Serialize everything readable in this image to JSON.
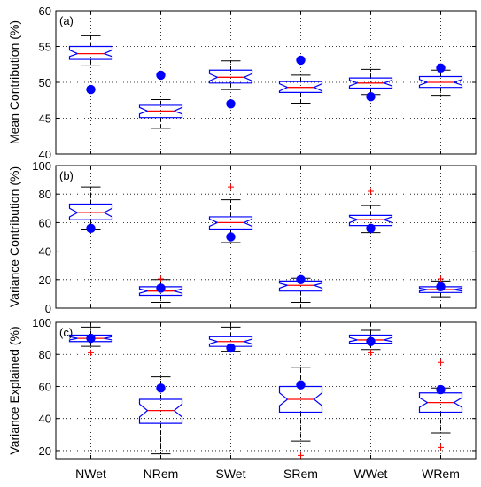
{
  "chart_data": [
    {
      "type": "box",
      "panel_label": "(a)",
      "ylabel": "Mean Contribution (%)",
      "ylim": [
        40,
        60
      ],
      "yticks": [
        "40",
        "45",
        "50",
        "55",
        "60"
      ],
      "grid": "dotted",
      "categories": [
        "NWet",
        "NRem",
        "SWet",
        "SRem",
        "WWet",
        "WRem"
      ],
      "boxes": [
        {
          "whislo": 52.3,
          "q1": 53.2,
          "med": 54.0,
          "q3": 55.0,
          "whishi": 56.5,
          "notch_lo": 53.6,
          "notch_hi": 54.5,
          "fliers": [],
          "dot": 49.0
        },
        {
          "whislo": 43.6,
          "q1": 45.1,
          "med": 46.0,
          "q3": 46.8,
          "whishi": 47.6,
          "notch_lo": 45.6,
          "notch_hi": 46.5,
          "fliers": [],
          "dot": 51.0
        },
        {
          "whislo": 49.0,
          "q1": 49.9,
          "med": 50.7,
          "q3": 51.7,
          "whishi": 53.0,
          "notch_lo": 50.2,
          "notch_hi": 51.2,
          "fliers": [],
          "dot": 47.0
        },
        {
          "whislo": 47.1,
          "q1": 48.6,
          "med": 49.3,
          "q3": 50.1,
          "whishi": 51.0,
          "notch_lo": 48.8,
          "notch_hi": 49.8,
          "fliers": [],
          "dot": 53.1
        },
        {
          "whislo": 48.3,
          "q1": 49.2,
          "med": 49.9,
          "q3": 50.6,
          "whishi": 51.8,
          "notch_lo": 49.5,
          "notch_hi": 50.3,
          "fliers": [],
          "dot": 48.0
        },
        {
          "whislo": 48.2,
          "q1": 49.3,
          "med": 50.0,
          "q3": 50.8,
          "whishi": 51.7,
          "notch_lo": 49.6,
          "notch_hi": 50.4,
          "fliers": [],
          "dot": 52.0
        }
      ]
    },
    {
      "type": "box",
      "panel_label": "(b)",
      "ylabel": "Variance Contribution (%)",
      "ylim": [
        0,
        100
      ],
      "yticks": [
        "0",
        "20",
        "40",
        "60",
        "80",
        "100"
      ],
      "grid": "dotted",
      "categories": [
        "NWet",
        "NRem",
        "SWet",
        "SRem",
        "WWet",
        "WRem"
      ],
      "boxes": [
        {
          "whislo": 55.0,
          "q1": 62.0,
          "med": 67.0,
          "q3": 73.0,
          "whishi": 85.0,
          "notch_lo": 64.0,
          "notch_hi": 70.0,
          "fliers": [],
          "dot": 56.0
        },
        {
          "whislo": 4.0,
          "q1": 9.0,
          "med": 12.0,
          "q3": 15.0,
          "whishi": 20.0,
          "notch_lo": 10.5,
          "notch_hi": 13.5,
          "fliers": [
            20.5
          ],
          "dot": 14.0
        },
        {
          "whislo": 46.0,
          "q1": 55.0,
          "med": 60.0,
          "q3": 64.0,
          "whishi": 76.0,
          "notch_lo": 57.5,
          "notch_hi": 62.5,
          "fliers": [
            85.0
          ],
          "dot": 50.0
        },
        {
          "whislo": 4.0,
          "q1": 12.0,
          "med": 16.0,
          "q3": 19.0,
          "whishi": 21.0,
          "notch_lo": 14.0,
          "notch_hi": 17.5,
          "fliers": [],
          "dot": 20.0
        },
        {
          "whislo": 53.0,
          "q1": 58.0,
          "med": 62.0,
          "q3": 65.0,
          "whishi": 72.0,
          "notch_lo": 60.0,
          "notch_hi": 64.0,
          "fliers": [
            82.0
          ],
          "dot": 56.0
        },
        {
          "whislo": 8.0,
          "q1": 11.0,
          "med": 13.0,
          "q3": 15.0,
          "whishi": 19.0,
          "notch_lo": 12.0,
          "notch_hi": 14.0,
          "fliers": [
            20.5
          ],
          "dot": 15.0
        }
      ]
    },
    {
      "type": "box",
      "panel_label": "(c)",
      "ylabel": "Variance Explained (%)",
      "ylim": [
        15,
        100
      ],
      "yticks": [
        "20",
        "40",
        "60",
        "80",
        "100"
      ],
      "ytick_values": [
        20,
        40,
        60,
        80,
        100
      ],
      "grid": "dotted",
      "categories": [
        "NWet",
        "NRem",
        "SWet",
        "SRem",
        "WWet",
        "WRem"
      ],
      "boxes": [
        {
          "whislo": 85.0,
          "q1": 88.0,
          "med": 90.0,
          "q3": 92.0,
          "whishi": 97.0,
          "notch_lo": 89.0,
          "notch_hi": 91.0,
          "fliers": [
            81.0
          ],
          "dot": 90.0
        },
        {
          "whislo": 18.0,
          "q1": 37.0,
          "med": 45.0,
          "q3": 52.0,
          "whishi": 66.0,
          "notch_lo": 41.0,
          "notch_hi": 49.0,
          "fliers": [],
          "dot": 59.0
        },
        {
          "whislo": 82.0,
          "q1": 85.0,
          "med": 88.0,
          "q3": 91.0,
          "whishi": 97.0,
          "notch_lo": 86.5,
          "notch_hi": 89.5,
          "fliers": [],
          "dot": 84.0
        },
        {
          "whislo": 26.0,
          "q1": 44.0,
          "med": 52.0,
          "q3": 60.0,
          "whishi": 72.0,
          "notch_lo": 48.0,
          "notch_hi": 56.0,
          "fliers": [
            17.0
          ],
          "dot": 61.0
        },
        {
          "whislo": 83.0,
          "q1": 87.0,
          "med": 89.0,
          "q3": 92.0,
          "whishi": 95.0,
          "notch_lo": 88.0,
          "notch_hi": 90.5,
          "fliers": [
            81.0
          ],
          "dot": 88.0
        },
        {
          "whislo": 31.0,
          "q1": 44.0,
          "med": 50.0,
          "q3": 56.0,
          "whishi": 59.0,
          "notch_lo": 47.0,
          "notch_hi": 53.0,
          "fliers": [
            75.0,
            22.0
          ],
          "dot": 58.0
        }
      ]
    }
  ],
  "colors": {
    "box": "#0000ff",
    "median": "#ff0000",
    "whisker": "#000000",
    "flier": "#ff0000",
    "dot": "#0000ff",
    "grid": "#000000"
  }
}
